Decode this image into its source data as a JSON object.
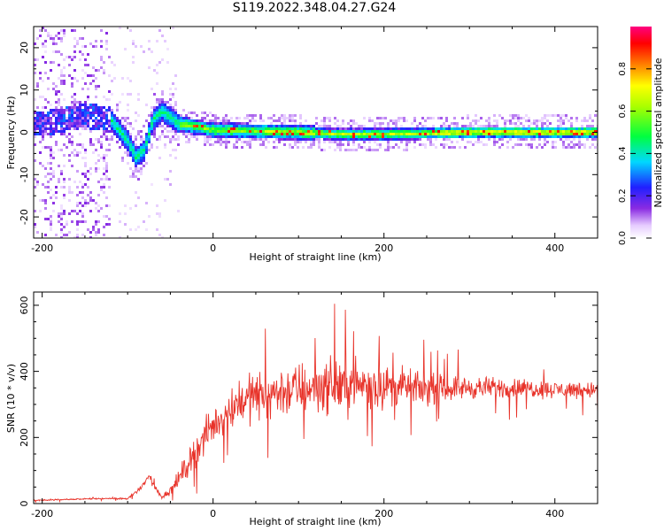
{
  "title": "S119.2022.348.04.27.G24",
  "chart_data": [
    {
      "type": "heatmap",
      "xlabel": "Height of straight line (km)",
      "ylabel": "Frequency (Hz)",
      "xlim": [
        -210,
        450
      ],
      "ylim": [
        -25,
        25
      ],
      "xticks": [
        -200,
        0,
        200,
        400
      ],
      "yticks": [
        -20,
        -10,
        0,
        10,
        20
      ],
      "colorbar": {
        "label": "Normalized spectral amplitude",
        "range": [
          0,
          1
        ],
        "ticks": [
          0.0,
          0.2,
          0.4,
          0.6,
          0.8
        ],
        "colormap": "rainbow (white-purple-blue-cyan-green-yellow-orange-red-magenta)"
      },
      "ridge": {
        "description": "Dominant spectral peak versus height",
        "points": [
          {
            "x": -200,
            "y": 2
          },
          {
            "x": -150,
            "y": 4
          },
          {
            "x": -120,
            "y": 3
          },
          {
            "x": -100,
            "y": -2
          },
          {
            "x": -90,
            "y": -6
          },
          {
            "x": -80,
            "y": -4
          },
          {
            "x": -70,
            "y": 3
          },
          {
            "x": -60,
            "y": 5
          },
          {
            "x": -40,
            "y": 2
          },
          {
            "x": 0,
            "y": 0.5
          },
          {
            "x": 100,
            "y": 0
          },
          {
            "x": 150,
            "y": -0.5
          },
          {
            "x": 200,
            "y": -0.5
          },
          {
            "x": 300,
            "y": 0
          },
          {
            "x": 450,
            "y": 0
          }
        ]
      }
    },
    {
      "type": "line",
      "xlabel": "Height of straight line (km)",
      "ylabel": "SNR (10 * v/v)",
      "xlim": [
        -210,
        450
      ],
      "ylim": [
        0,
        640
      ],
      "xticks": [
        -200,
        0,
        200,
        400
      ],
      "yticks": [
        0,
        200,
        400,
        600
      ],
      "series": [
        {
          "color": "#e8332a",
          "x": [
            -210,
            -180,
            -150,
            -120,
            -100,
            -90,
            -80,
            -75,
            -70,
            -60,
            -50,
            -40,
            -30,
            -20,
            -10,
            0,
            10,
            20,
            30,
            40,
            60,
            80,
            100,
            120,
            140,
            160,
            180,
            200,
            220,
            250,
            280,
            320,
            360,
            400,
            450
          ],
          "y": [
            10,
            12,
            14,
            15,
            15,
            35,
            60,
            90,
            55,
            20,
            40,
            75,
            120,
            160,
            200,
            235,
            260,
            285,
            310,
            320,
            330,
            340,
            345,
            355,
            355,
            360,
            360,
            355,
            355,
            345,
            350,
            350,
            350,
            345,
            345
          ],
          "noise_amplitude": [
            3,
            3,
            3,
            3,
            4,
            10,
            15,
            25,
            20,
            10,
            25,
            40,
            60,
            70,
            80,
            85,
            90,
            100,
            110,
            110,
            115,
            120,
            125,
            125,
            125,
            125,
            115,
            100,
            85,
            70,
            55,
            50,
            45,
            40,
            40
          ]
        }
      ]
    }
  ]
}
